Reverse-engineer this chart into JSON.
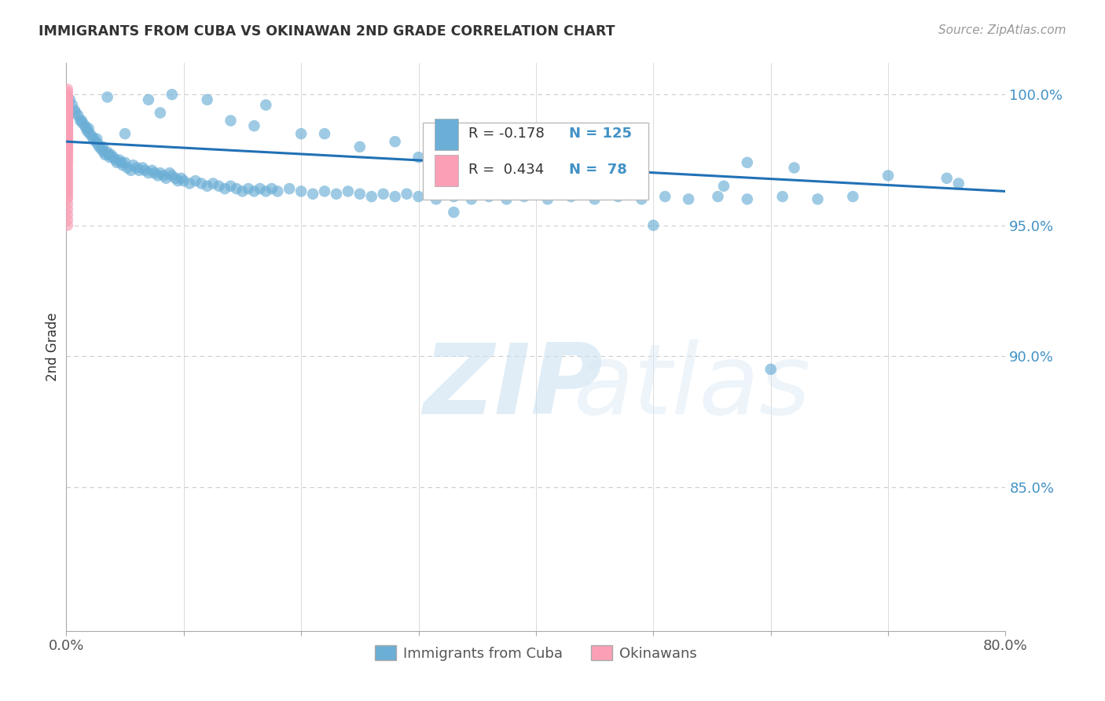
{
  "title": "IMMIGRANTS FROM CUBA VS OKINAWAN 2ND GRADE CORRELATION CHART",
  "source": "Source: ZipAtlas.com",
  "ylabel": "2nd Grade",
  "legend_label_1": "Immigrants from Cuba",
  "legend_label_2": "Okinawans",
  "legend_R1": "R = -0.178",
  "legend_N1": "N = 125",
  "legend_R2": "R =  0.434",
  "legend_N2": "N =  78",
  "blue_color": "#6baed6",
  "pink_color": "#fa9fb5",
  "trend_color": "#2171b5",
  "watermark_zip": "ZIP",
  "watermark_atlas": "atlas",
  "background_color": "#ffffff",
  "grid_color": "#cccccc",
  "right_label_color": "#4292c6",
  "title_color": "#333333",
  "y_tick_values_right": [
    1.0,
    0.95,
    0.9,
    0.85
  ],
  "xlim": [
    0.0,
    0.8
  ],
  "ylim": [
    0.795,
    1.012
  ],
  "trend_x": [
    0.0,
    0.8
  ],
  "trend_y": [
    0.982,
    0.963
  ],
  "blue_scatter_x": [
    0.003,
    0.005,
    0.007,
    0.008,
    0.01,
    0.012,
    0.013,
    0.014,
    0.016,
    0.017,
    0.018,
    0.019,
    0.02,
    0.022,
    0.023,
    0.025,
    0.026,
    0.027,
    0.028,
    0.03,
    0.031,
    0.032,
    0.033,
    0.035,
    0.036,
    0.037,
    0.038,
    0.04,
    0.042,
    0.043,
    0.045,
    0.047,
    0.048,
    0.05,
    0.052,
    0.055,
    0.057,
    0.06,
    0.062,
    0.065,
    0.067,
    0.07,
    0.073,
    0.075,
    0.078,
    0.08,
    0.083,
    0.085,
    0.088,
    0.09,
    0.093,
    0.095,
    0.098,
    0.1,
    0.105,
    0.11,
    0.115,
    0.12,
    0.125,
    0.13,
    0.135,
    0.14,
    0.145,
    0.15,
    0.155,
    0.16,
    0.165,
    0.17,
    0.175,
    0.18,
    0.19,
    0.2,
    0.21,
    0.22,
    0.23,
    0.24,
    0.25,
    0.26,
    0.27,
    0.28,
    0.29,
    0.3,
    0.315,
    0.33,
    0.345,
    0.36,
    0.375,
    0.39,
    0.41,
    0.43,
    0.45,
    0.47,
    0.49,
    0.51,
    0.53,
    0.555,
    0.58,
    0.61,
    0.64,
    0.67,
    0.035,
    0.09,
    0.12,
    0.17,
    0.2,
    0.25,
    0.3,
    0.35,
    0.07,
    0.14,
    0.05,
    0.08,
    0.16,
    0.22,
    0.28,
    0.58,
    0.62,
    0.7,
    0.75,
    0.76,
    0.33,
    0.45,
    0.5,
    0.56,
    0.6
  ],
  "blue_scatter_y": [
    0.998,
    0.996,
    0.994,
    0.993,
    0.992,
    0.99,
    0.99,
    0.989,
    0.988,
    0.987,
    0.986,
    0.987,
    0.985,
    0.984,
    0.983,
    0.982,
    0.983,
    0.981,
    0.98,
    0.979,
    0.98,
    0.978,
    0.977,
    0.978,
    0.977,
    0.976,
    0.977,
    0.976,
    0.975,
    0.974,
    0.975,
    0.974,
    0.973,
    0.974,
    0.972,
    0.971,
    0.973,
    0.972,
    0.971,
    0.972,
    0.971,
    0.97,
    0.971,
    0.97,
    0.969,
    0.97,
    0.969,
    0.968,
    0.97,
    0.969,
    0.968,
    0.967,
    0.968,
    0.967,
    0.966,
    0.967,
    0.966,
    0.965,
    0.966,
    0.965,
    0.964,
    0.965,
    0.964,
    0.963,
    0.964,
    0.963,
    0.964,
    0.963,
    0.964,
    0.963,
    0.964,
    0.963,
    0.962,
    0.963,
    0.962,
    0.963,
    0.962,
    0.961,
    0.962,
    0.961,
    0.962,
    0.961,
    0.96,
    0.961,
    0.96,
    0.961,
    0.96,
    0.961,
    0.96,
    0.961,
    0.96,
    0.961,
    0.96,
    0.961,
    0.96,
    0.961,
    0.96,
    0.961,
    0.96,
    0.961,
    0.999,
    1.0,
    0.998,
    0.996,
    0.985,
    0.98,
    0.976,
    0.972,
    0.998,
    0.99,
    0.985,
    0.993,
    0.988,
    0.985,
    0.982,
    0.974,
    0.972,
    0.969,
    0.968,
    0.966,
    0.955,
    0.967,
    0.95,
    0.965,
    0.895
  ],
  "pink_scatter_x": [
    0.001,
    0.001,
    0.001,
    0.001,
    0.001,
    0.001,
    0.001,
    0.001,
    0.001,
    0.001,
    0.001,
    0.001,
    0.001,
    0.001,
    0.001,
    0.001,
    0.001,
    0.001,
    0.001,
    0.001,
    0.001,
    0.001,
    0.001,
    0.001,
    0.001,
    0.001,
    0.001,
    0.001,
    0.001,
    0.001,
    0.001,
    0.001,
    0.001,
    0.001,
    0.001,
    0.001,
    0.001,
    0.001,
    0.001,
    0.001,
    0.001,
    0.001,
    0.001,
    0.001,
    0.001,
    0.001,
    0.001,
    0.001,
    0.001,
    0.001,
    0.001,
    0.001,
    0.001,
    0.001,
    0.001,
    0.001,
    0.001,
    0.001,
    0.001,
    0.001,
    0.001,
    0.001,
    0.001,
    0.001,
    0.001,
    0.001,
    0.001,
    0.001,
    0.001,
    0.001,
    0.001,
    0.001,
    0.001,
    0.001,
    0.001,
    0.001,
    0.001,
    0.001
  ],
  "pink_scatter_y": [
    1.002,
    1.001,
    1.0,
    0.999,
    0.999,
    0.998,
    0.998,
    0.997,
    0.997,
    0.997,
    0.996,
    0.996,
    0.996,
    0.995,
    0.995,
    0.994,
    0.994,
    0.994,
    0.993,
    0.993,
    0.993,
    0.992,
    0.992,
    0.992,
    0.991,
    0.991,
    0.99,
    0.99,
    0.99,
    0.989,
    0.989,
    0.989,
    0.988,
    0.988,
    0.987,
    0.987,
    0.986,
    0.986,
    0.985,
    0.985,
    0.984,
    0.984,
    0.983,
    0.983,
    0.982,
    0.982,
    0.981,
    0.981,
    0.98,
    0.98,
    0.979,
    0.979,
    0.978,
    0.977,
    0.977,
    0.976,
    0.975,
    0.975,
    0.974,
    0.973,
    0.972,
    0.971,
    0.97,
    0.969,
    0.968,
    0.967,
    0.966,
    0.965,
    0.964,
    0.963,
    0.962,
    0.961,
    0.96,
    0.958,
    0.956,
    0.954,
    0.952,
    0.95
  ]
}
